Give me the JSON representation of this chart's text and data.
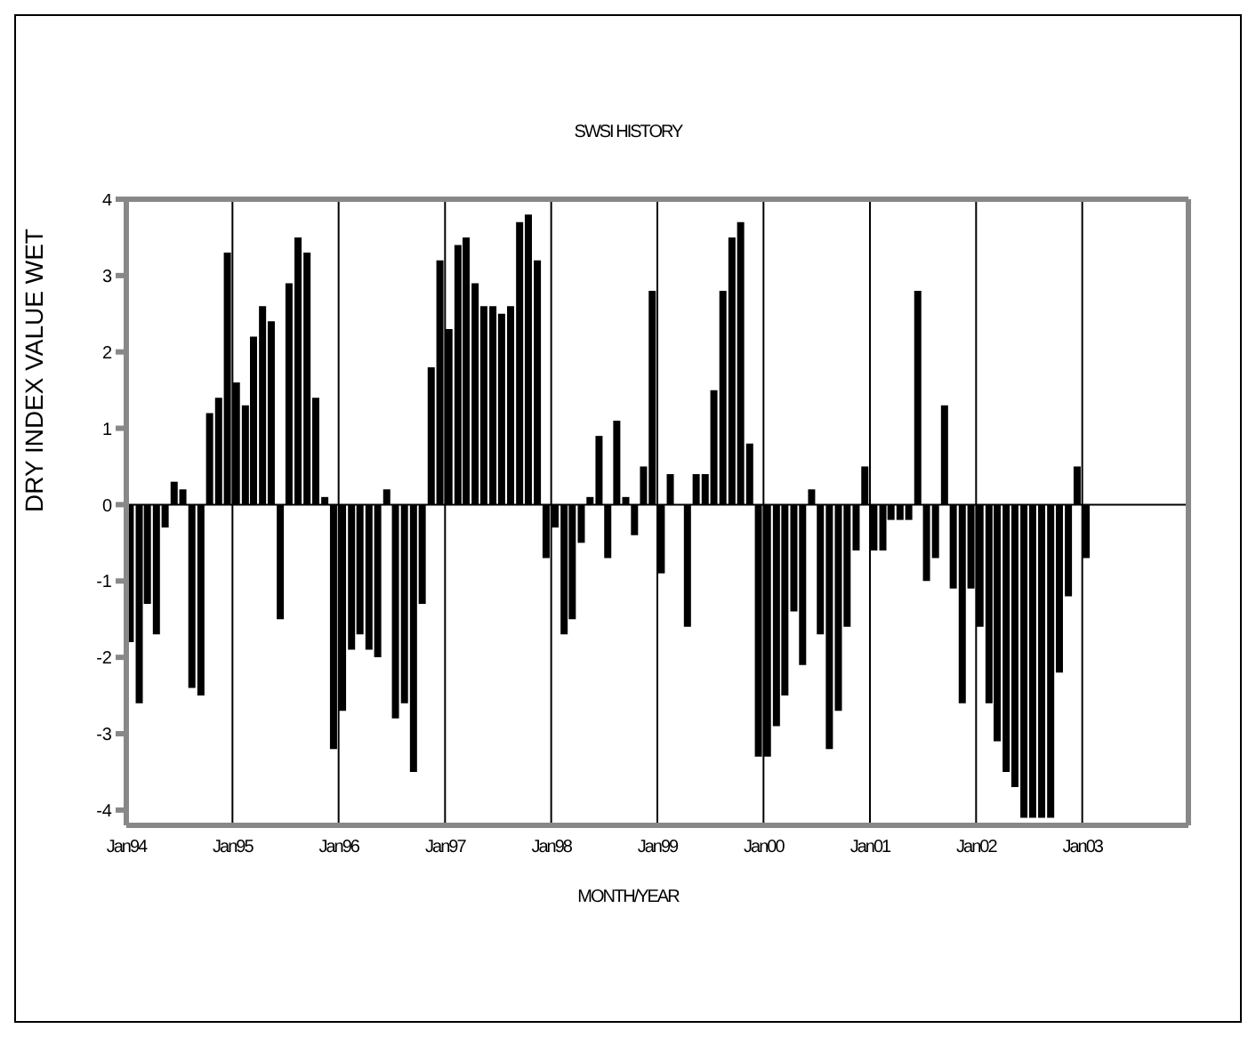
{
  "chart_data": {
    "type": "bar",
    "title": "SWSI HISTORY",
    "xlabel": "MONTH/YEAR",
    "ylabel": "DRY     INDEX VALUE     WET",
    "x": [
      "1994-01",
      "1994-02",
      "1994-03",
      "1994-04",
      "1994-05",
      "1994-06",
      "1994-07",
      "1994-08",
      "1994-09",
      "1994-10",
      "1994-11",
      "1994-12",
      "1995-01",
      "1995-02",
      "1995-03",
      "1995-04",
      "1995-05",
      "1995-06",
      "1995-07",
      "1995-08",
      "1995-09",
      "1995-10",
      "1995-11",
      "1995-12",
      "1996-01",
      "1996-02",
      "1996-03",
      "1996-04",
      "1996-05",
      "1996-06",
      "1996-07",
      "1996-08",
      "1996-09",
      "1996-10",
      "1996-11",
      "1996-12",
      "1997-01",
      "1997-02",
      "1997-03",
      "1997-04",
      "1997-05",
      "1997-06",
      "1997-07",
      "1997-08",
      "1997-09",
      "1997-10",
      "1997-11",
      "1997-12",
      "1998-01",
      "1998-02",
      "1998-03",
      "1998-04",
      "1998-05",
      "1998-06",
      "1998-07",
      "1998-08",
      "1998-09",
      "1998-10",
      "1998-11",
      "1998-12",
      "1999-01",
      "1999-02",
      "1999-03",
      "1999-04",
      "1999-05",
      "1999-06",
      "1999-07",
      "1999-08",
      "1999-09",
      "1999-10",
      "1999-11",
      "1999-12",
      "2000-01",
      "2000-02",
      "2000-03",
      "2000-04",
      "2000-05",
      "2000-06",
      "2000-07",
      "2000-08",
      "2000-09",
      "2000-10",
      "2000-11",
      "2000-12",
      "2001-01",
      "2001-02",
      "2001-03",
      "2001-04",
      "2001-05",
      "2001-06",
      "2001-07",
      "2001-08",
      "2001-09",
      "2001-10",
      "2001-11",
      "2001-12",
      "2002-01",
      "2002-02",
      "2002-03",
      "2002-04",
      "2002-05",
      "2002-06",
      "2002-07",
      "2002-08",
      "2002-09",
      "2002-10",
      "2002-11",
      "2002-12",
      "2003-01"
    ],
    "series": [
      {
        "color": "#000000",
        "values": [
          -1.8,
          -2.6,
          -1.3,
          -1.7,
          -0.3,
          0.3,
          0.2,
          -2.4,
          -2.5,
          1.2,
          1.4,
          3.3,
          1.6,
          1.3,
          2.2,
          2.6,
          2.4,
          -1.5,
          2.9,
          3.5,
          3.3,
          1.4,
          0.1,
          -3.2,
          -2.7,
          -1.9,
          -1.7,
          -1.9,
          -2.0,
          0.2,
          -2.8,
          -2.6,
          -3.5,
          -1.3,
          1.8,
          3.2,
          2.3,
          3.4,
          3.5,
          2.9,
          2.6,
          2.6,
          2.5,
          2.6,
          3.7,
          3.8,
          3.2,
          -0.7,
          -0.3,
          -1.7,
          -1.5,
          -0.5,
          0.1,
          0.9,
          -0.7,
          1.1,
          0.1,
          -0.4,
          0.5,
          2.8,
          -0.9,
          0.4,
          0,
          -1.6,
          0.4,
          0.4,
          1.5,
          2.8,
          3.5,
          3.7,
          0.8,
          -3.3,
          -3.3,
          -2.9,
          -2.5,
          -1.4,
          -2.1,
          0.2,
          -1.7,
          -3.2,
          -2.7,
          -1.6,
          -0.6,
          0.5,
          -0.6,
          -0.6,
          -0.2,
          -0.2,
          -0.2,
          2.8,
          -1.0,
          -0.7,
          1.3,
          -1.1,
          -2.6,
          -1.1,
          -1.6,
          -2.6,
          -3.1,
          -3.5,
          -3.7,
          -4.1,
          -4.1,
          -4.1,
          -4.1,
          -2.2,
          -1.2,
          0.5,
          -0.7
        ]
      }
    ],
    "xlim": [
      "1994-01",
      "2004-01"
    ],
    "xticks": [
      {
        "value": "1994-01",
        "label": "Jan94"
      },
      {
        "value": "1995-01",
        "label": "Jan95"
      },
      {
        "value": "1996-01",
        "label": "Jan96"
      },
      {
        "value": "1997-01",
        "label": "Jan97"
      },
      {
        "value": "1998-01",
        "label": "Jan98"
      },
      {
        "value": "1999-01",
        "label": "Jan99"
      },
      {
        "value": "2000-01",
        "label": "Jan00"
      },
      {
        "value": "2001-01",
        "label": "Jan01"
      },
      {
        "value": "2002-01",
        "label": "Jan02"
      },
      {
        "value": "2003-01",
        "label": "Jan03"
      }
    ],
    "ylim": [
      -4.2,
      4
    ],
    "yticks": [
      -4,
      -3,
      -2,
      -1,
      0,
      1,
      2,
      3,
      4
    ],
    "ref_lines": [
      {
        "axis": "y",
        "value": 0,
        "color": "#000000"
      }
    ],
    "grid": "x",
    "legend": false
  }
}
